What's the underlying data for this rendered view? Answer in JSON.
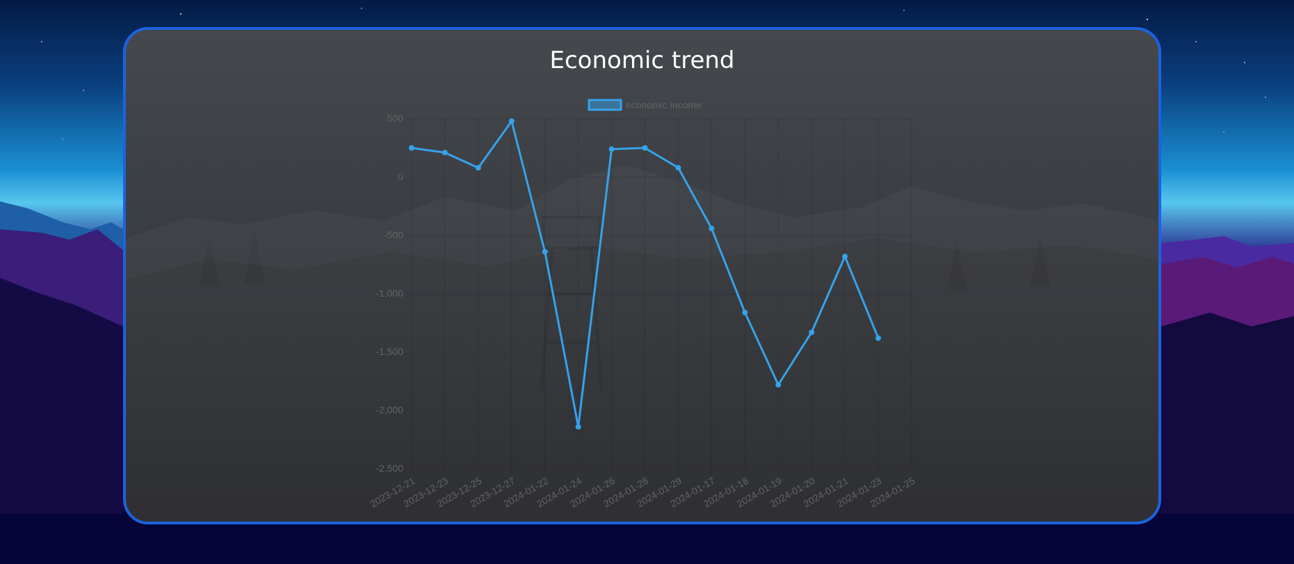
{
  "colors": {
    "panel_border": "#1c63df",
    "line": "#36a2eb",
    "legend_fill": "rgba(54,162,235,0.5)",
    "grid": "rgba(0,0,0,0.12)",
    "tick": "#626366",
    "title": "#ffffff"
  },
  "chart_data": {
    "type": "line",
    "title": "Economic trend",
    "xlabel": "",
    "ylabel": "",
    "ylim": [
      -2500,
      500
    ],
    "yticks": [
      500,
      0,
      -500,
      -1000,
      -1500,
      -2000,
      -2500
    ],
    "ytick_labels": [
      "500",
      "0",
      "-500",
      "-1,000",
      "-1,500",
      "-2,000",
      "-2,500"
    ],
    "grid": true,
    "legend_position": "top",
    "categories": [
      "2023-12-21",
      "2023-12-23",
      "2023-12-25",
      "2023-12-27",
      "2024-01-22",
      "2024-01-24",
      "2024-01-26",
      "2024-01-28",
      "2024-01-29",
      "2024-01-17",
      "2024-01-18",
      "2024-01-19",
      "2024-01-20",
      "2024-01-21",
      "2024-01-23",
      "2024-01-25"
    ],
    "series": [
      {
        "name": "economic income",
        "values": [
          250,
          210,
          80,
          480,
          -640,
          -2140,
          240,
          250,
          80,
          -440,
          -1160,
          -1780,
          -1330,
          -680,
          -1380,
          null
        ]
      }
    ]
  }
}
